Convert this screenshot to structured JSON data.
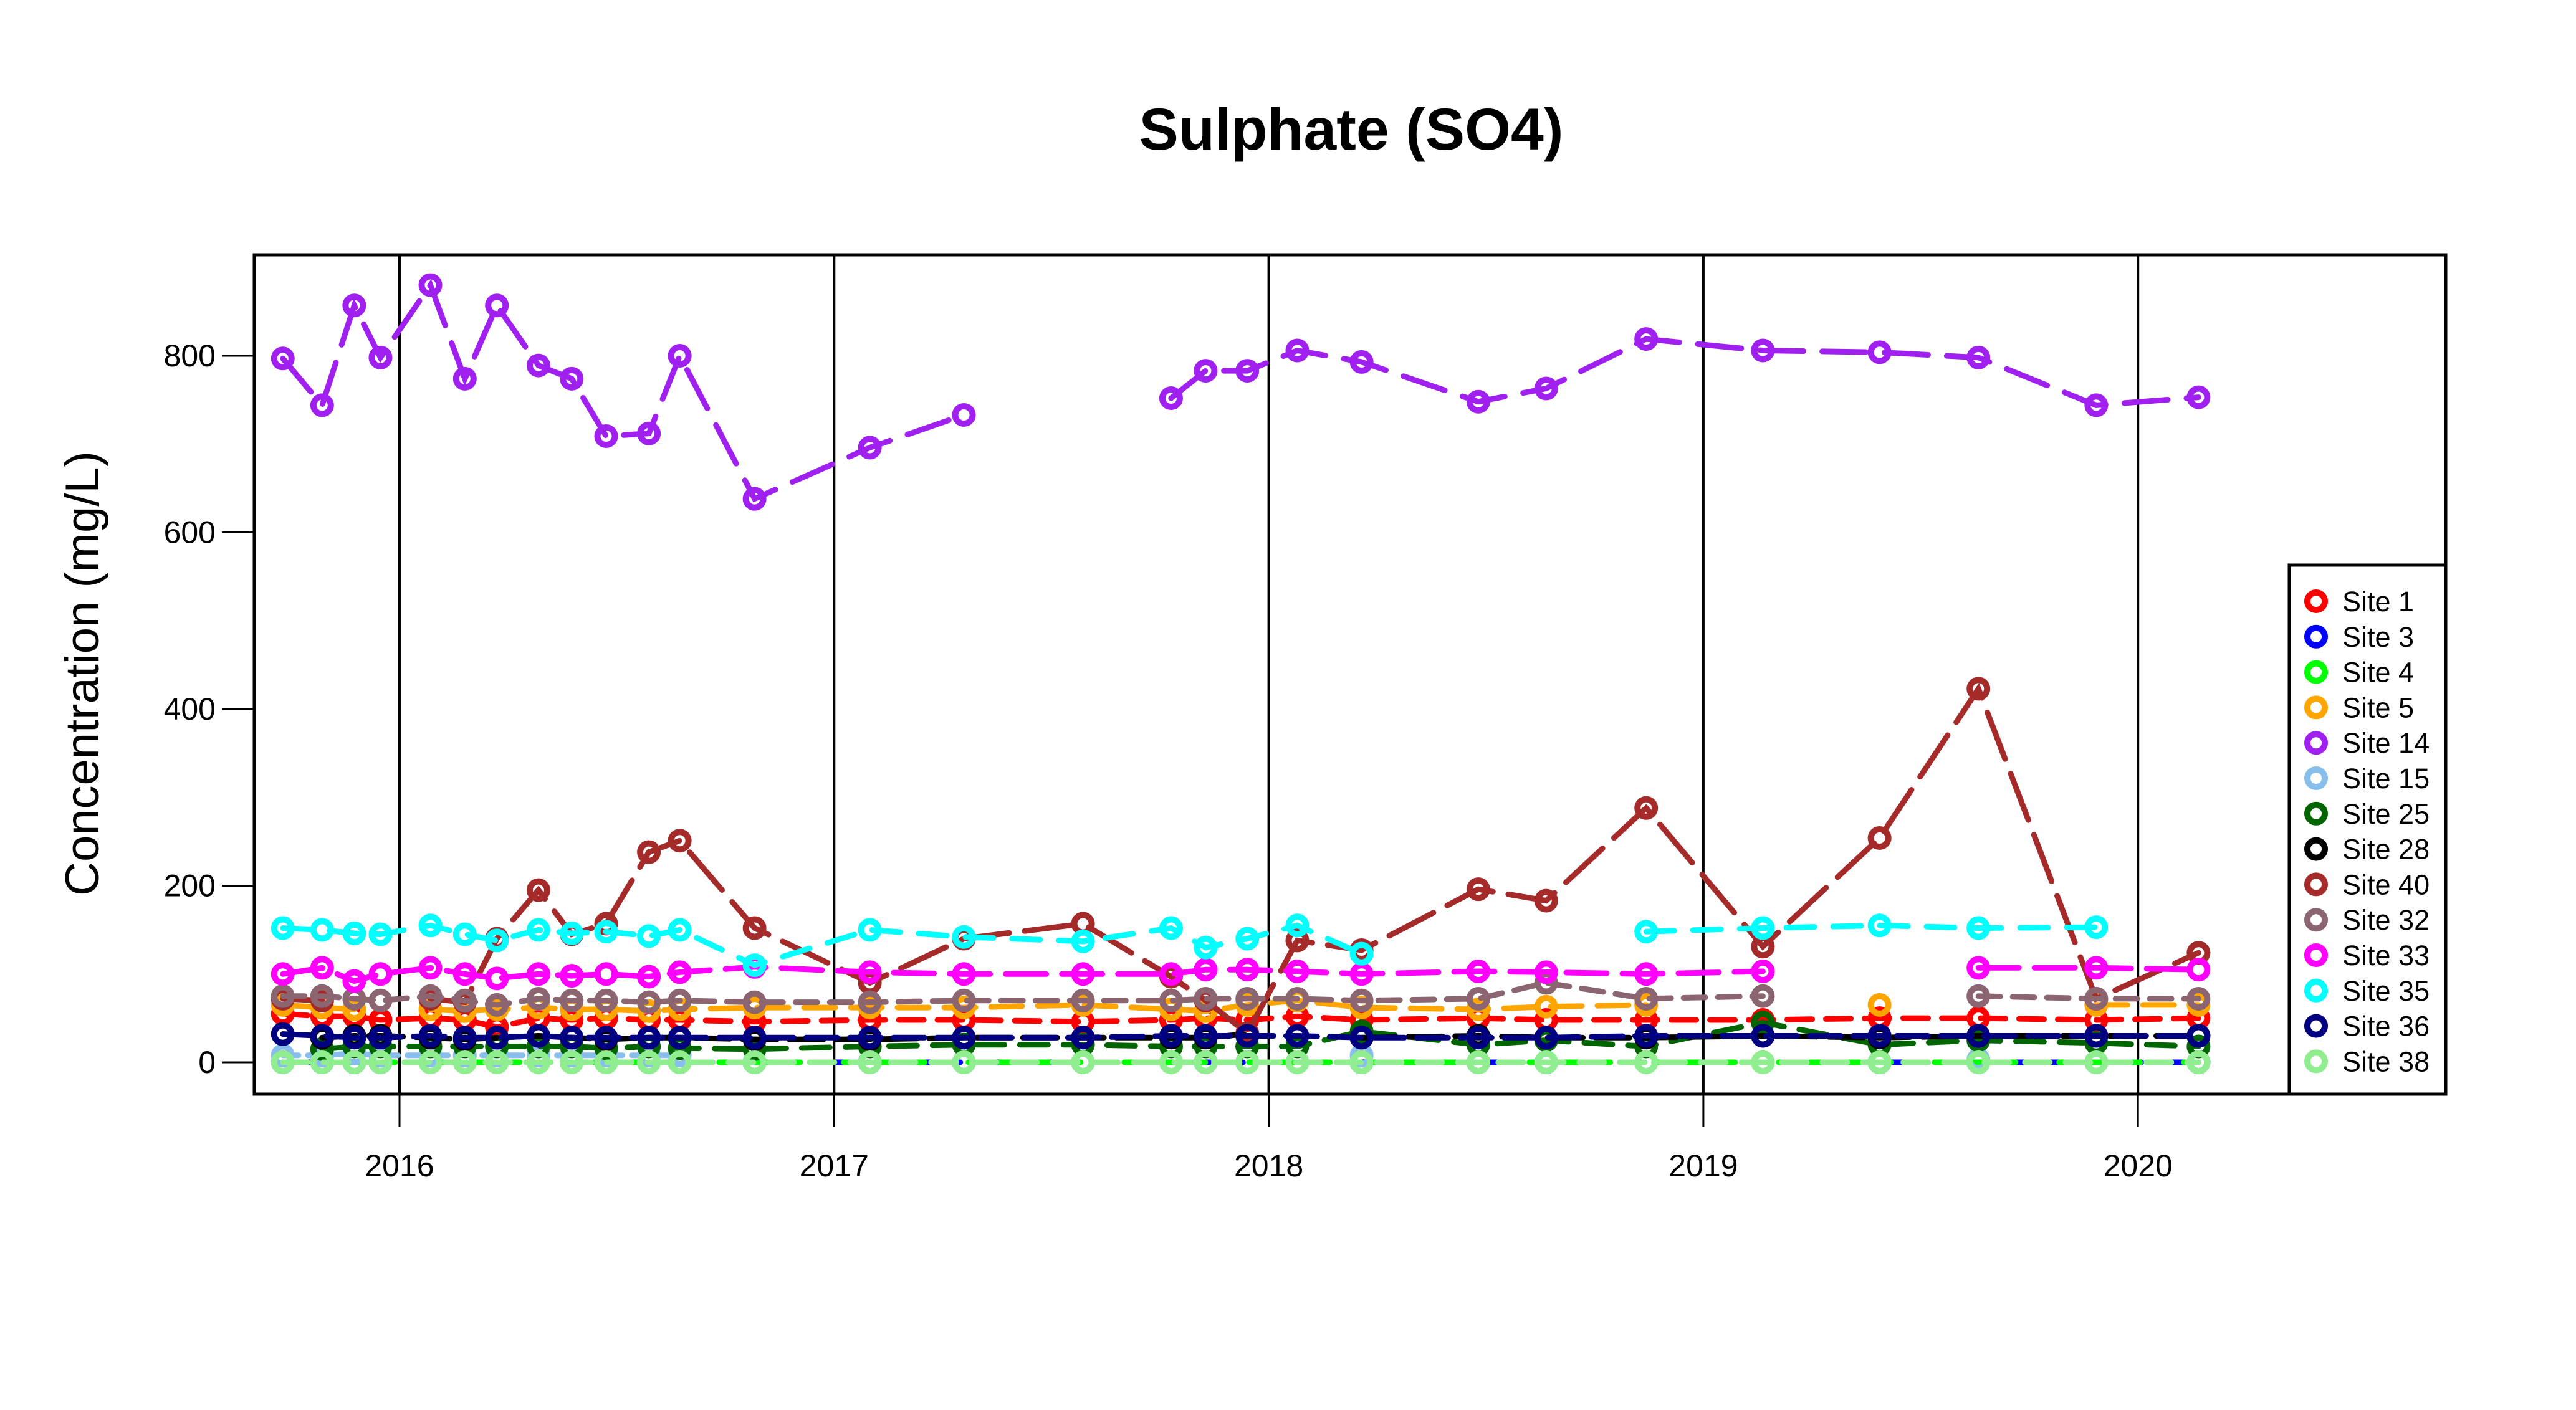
{
  "chart_data": {
    "type": "line",
    "title": "Sulphate (SO4)",
    "xlabel": "",
    "ylabel": "Concentration (mg/L)",
    "ylim": [
      0,
      900
    ],
    "yticks": [
      "0",
      "200",
      "400",
      "600",
      "800"
    ],
    "xticks": [
      "2016",
      "2017",
      "2018",
      "2019",
      "2020"
    ],
    "xlim": [
      "2015-08-01",
      "2020-08-01"
    ],
    "grid": "vertical lines at each year",
    "legend_position": "right",
    "dates": [
      "2015-09-25",
      "2015-10-28",
      "2015-11-24",
      "2015-12-16",
      "2016-01-27",
      "2016-02-25",
      "2016-03-23",
      "2016-04-27",
      "2016-05-25",
      "2016-06-23",
      "2016-07-29",
      "2016-08-24",
      "2016-10-26",
      "2017-01-31",
      "2017-04-20",
      "2017-07-29",
      "2017-10-11",
      "2017-11-09",
      "2017-12-14",
      "2018-01-25",
      "2018-03-20",
      "2018-06-26",
      "2018-08-22",
      "2018-11-14",
      "2019-02-20",
      "2019-05-29",
      "2019-08-20",
      "2019-11-27",
      "2020-02-21"
    ],
    "series": [
      {
        "name": "Site 1",
        "color": "#FF0000",
        "values": [
          55,
          52,
          52,
          48,
          50,
          48,
          40,
          50,
          48,
          50,
          48,
          48,
          46,
          48,
          48,
          46,
          48,
          50,
          48,
          52,
          48,
          50,
          48,
          48,
          48,
          50,
          50,
          48,
          50
        ]
      },
      {
        "name": "Site 3",
        "color": "#0000FF",
        "values": [
          0,
          0,
          0,
          0,
          null,
          null,
          null,
          null,
          null,
          null,
          null,
          null,
          0,
          0,
          0,
          0,
          null,
          0,
          0,
          null,
          0,
          0,
          0,
          null,
          null,
          0,
          0,
          0,
          0
        ]
      },
      {
        "name": "Site 4",
        "color": "#00FF00",
        "values": [
          0,
          0,
          0,
          0,
          0,
          0,
          0,
          0,
          0,
          0,
          0,
          0,
          0,
          0,
          0,
          0,
          0,
          0,
          0,
          0,
          0,
          0,
          0,
          0,
          0,
          0,
          0,
          0,
          0
        ]
      },
      {
        "name": "Site 5",
        "color": "#FFA500",
        "values": [
          65,
          62,
          60,
          null,
          60,
          58,
          60,
          62,
          60,
          60,
          58,
          60,
          62,
          62,
          62,
          65,
          60,
          58,
          65,
          70,
          62,
          60,
          63,
          65,
          null,
          65,
          null,
          65,
          65
        ]
      },
      {
        "name": "Site 14",
        "color": "#A020F0",
        "values": [
          797,
          744,
          857,
          798,
          880,
          774,
          857,
          789,
          774,
          709,
          712,
          800,
          638,
          696,
          733,
          null,
          752,
          783,
          783,
          806,
          793,
          748,
          763,
          819,
          806,
          804,
          798,
          744,
          753
        ]
      },
      {
        "name": "Site 15",
        "color": "#87BEEB",
        "values": [
          8,
          8,
          10,
          8,
          8,
          8,
          8,
          8,
          8,
          8,
          8,
          8,
          null,
          null,
          null,
          null,
          null,
          null,
          null,
          null,
          8,
          null,
          null,
          null,
          null,
          null,
          3,
          null,
          null
        ]
      },
      {
        "name": "Site 25",
        "color": "#006400",
        "values": [
          null,
          15,
          18,
          18,
          18,
          18,
          18,
          18,
          18,
          16,
          18,
          16,
          15,
          18,
          20,
          20,
          18,
          18,
          18,
          18,
          35,
          20,
          25,
          18,
          45,
          20,
          25,
          22,
          18
        ]
      },
      {
        "name": "Site 28",
        "color": "#000000",
        "values": [
          null,
          28,
          30,
          30,
          28,
          26,
          28,
          30,
          28,
          26,
          28,
          28,
          26,
          26,
          28,
          28,
          28,
          28,
          32,
          null,
          28,
          30,
          28,
          28,
          30,
          28,
          30,
          30,
          30
        ]
      },
      {
        "name": "Site 40",
        "color": "#A52A2A",
        "values": [
          72,
          70,
          null,
          null,
          72,
          68,
          140,
          195,
          145,
          157,
          238,
          251,
          152,
          90,
          140,
          157,
          97,
          70,
          33,
          138,
          127,
          196,
          183,
          288,
          131,
          254,
          423,
          72,
          124
        ]
      },
      {
        "name": "Site 32",
        "color": "#8B6570",
        "values": [
          75,
          75,
          72,
          70,
          75,
          70,
          65,
          72,
          70,
          70,
          68,
          70,
          68,
          68,
          70,
          70,
          70,
          72,
          72,
          72,
          70,
          72,
          90,
          72,
          75,
          null,
          75,
          72,
          72
        ]
      },
      {
        "name": "Site 33",
        "color": "#FF00FF",
        "values": [
          100,
          107,
          92,
          100,
          107,
          100,
          95,
          100,
          98,
          100,
          97,
          102,
          108,
          102,
          100,
          100,
          100,
          105,
          105,
          103,
          100,
          103,
          102,
          100,
          103,
          null,
          107,
          107,
          105
        ]
      },
      {
        "name": "Site 35",
        "color": "#00FFFF",
        "values": [
          152,
          150,
          146,
          145,
          155,
          145,
          138,
          150,
          146,
          148,
          143,
          150,
          110,
          150,
          142,
          137,
          152,
          130,
          140,
          155,
          123,
          null,
          null,
          148,
          152,
          155,
          152,
          153,
          null
        ]
      },
      {
        "name": "Site 36",
        "color": "#000080",
        "values": [
          32,
          30,
          28,
          28,
          30,
          28,
          28,
          30,
          28,
          28,
          28,
          28,
          28,
          28,
          28,
          28,
          30,
          30,
          30,
          30,
          28,
          28,
          28,
          30,
          30,
          30,
          30,
          30,
          30
        ]
      },
      {
        "name": "Site 38",
        "color": "#90EE90",
        "values": [
          0,
          0,
          0,
          0,
          0,
          0,
          0,
          0,
          0,
          0,
          0,
          0,
          0,
          0,
          0,
          0,
          0,
          0,
          0,
          0,
          0,
          0,
          0,
          0,
          0,
          0,
          0,
          0,
          0
        ]
      }
    ],
    "legend_order": [
      "Site 1",
      "Site 3",
      "Site 4",
      "Site 5",
      "Site 14",
      "Site 15",
      "Site 25",
      "Site 28",
      "Site 40",
      "Site 32",
      "Site 33",
      "Site 35",
      "Site 36",
      "Site 38"
    ]
  }
}
